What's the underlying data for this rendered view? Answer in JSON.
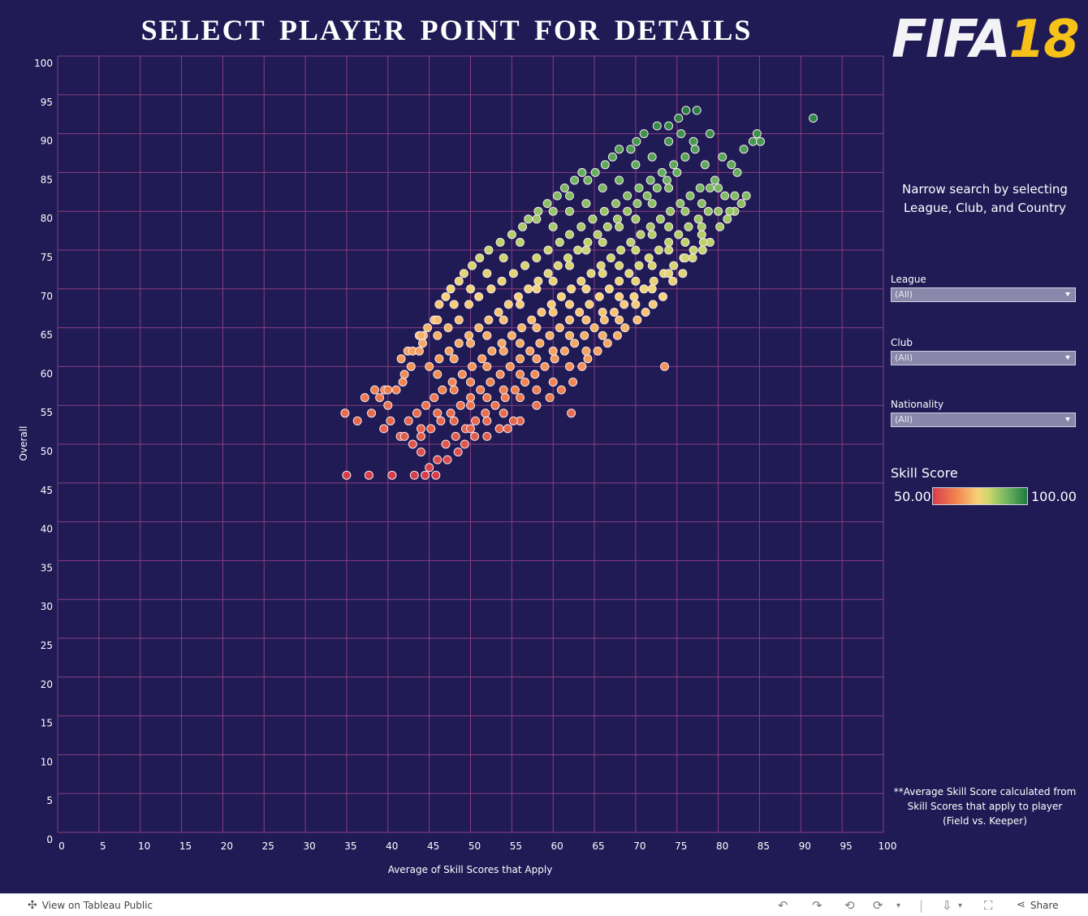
{
  "title": "SELECT PLAYER POINT FOR DETAILS",
  "logo": {
    "fifa": "FIFA",
    "num": "18"
  },
  "sidebar": {
    "narrow_text": "Narrow search by selecting League, Club, and Country",
    "filters": [
      {
        "label": "League",
        "value": "(All)"
      },
      {
        "label": "Club",
        "value": "(All)"
      },
      {
        "label": "Nationality",
        "value": "(All)"
      }
    ],
    "legend": {
      "title": "Skill Score",
      "min_label": "50.00",
      "max_label": "100.00"
    },
    "footnote": "**Average Skill Score calculated from Skill Scores that apply to player (Field vs. Keeper)"
  },
  "footer": {
    "view_label": "View on Tableau Public",
    "share_label": "Share"
  },
  "colors": {
    "background": "#201a55",
    "grid": "#8a3f82",
    "low": "#d73e4a",
    "mid": "#f9d27a",
    "high": "#1f7a3f"
  },
  "chart_data": {
    "type": "scatter",
    "xlabel": "Average of Skill Scores that Apply",
    "ylabel": "Overall",
    "xlim": [
      0,
      100
    ],
    "ylim": [
      0,
      100
    ],
    "xticks": [
      0,
      5,
      10,
      15,
      20,
      25,
      30,
      35,
      40,
      45,
      50,
      55,
      60,
      65,
      70,
      75,
      80,
      85,
      90,
      95,
      100
    ],
    "yticks": [
      0,
      5,
      10,
      15,
      20,
      25,
      30,
      35,
      40,
      45,
      50,
      55,
      60,
      65,
      70,
      75,
      80,
      85,
      90,
      95,
      100
    ],
    "grid": true,
    "color_field": "Skill Score",
    "color_range": [
      50,
      100
    ],
    "points": [
      [
        35,
        46
      ],
      [
        37.7,
        46
      ],
      [
        40.5,
        46
      ],
      [
        43.2,
        46
      ],
      [
        44.5,
        46
      ],
      [
        45.8,
        46
      ],
      [
        34.8,
        54
      ],
      [
        36.3,
        53
      ],
      [
        37.2,
        56
      ],
      [
        38.4,
        57
      ],
      [
        39.6,
        57
      ],
      [
        40.3,
        53
      ],
      [
        41.6,
        61
      ],
      [
        42.4,
        62
      ],
      [
        43.0,
        62
      ],
      [
        43.8,
        64
      ],
      [
        44.3,
        64
      ],
      [
        44.8,
        65
      ],
      [
        45.6,
        66
      ],
      [
        46.2,
        68
      ],
      [
        47.0,
        69
      ],
      [
        47.6,
        70
      ],
      [
        48.6,
        71
      ],
      [
        49.2,
        72
      ],
      [
        50.2,
        73
      ],
      [
        51.1,
        74
      ],
      [
        52.2,
        75
      ],
      [
        53.6,
        76
      ],
      [
        55.0,
        77
      ],
      [
        56.3,
        78
      ],
      [
        57.0,
        79
      ],
      [
        58.2,
        80
      ],
      [
        59.3,
        81
      ],
      [
        60.5,
        82
      ],
      [
        61.4,
        83
      ],
      [
        62.6,
        84
      ],
      [
        63.5,
        85
      ],
      [
        64.2,
        84
      ],
      [
        65.1,
        85
      ],
      [
        66.3,
        86
      ],
      [
        67.2,
        87
      ],
      [
        68.0,
        88
      ],
      [
        69.4,
        88
      ],
      [
        70.1,
        89
      ],
      [
        71.0,
        90
      ],
      [
        72.6,
        91
      ],
      [
        74.0,
        91
      ],
      [
        75.2,
        92
      ],
      [
        76.1,
        93
      ],
      [
        77.4,
        93
      ],
      [
        79.0,
        90
      ],
      [
        80.5,
        87
      ],
      [
        81.6,
        86
      ],
      [
        82.3,
        85
      ],
      [
        83.1,
        88
      ],
      [
        84.2,
        89
      ],
      [
        84.7,
        90
      ],
      [
        85.1,
        89
      ],
      [
        91.5,
        92
      ],
      [
        73.5,
        60
      ],
      [
        62.2,
        54
      ],
      [
        56.0,
        53
      ],
      [
        55.2,
        53
      ],
      [
        54.5,
        52
      ],
      [
        58.0,
        55
      ],
      [
        59.6,
        56
      ],
      [
        61.0,
        57
      ],
      [
        62.4,
        58
      ],
      [
        63.5,
        60
      ],
      [
        64.2,
        61
      ],
      [
        65.4,
        62
      ],
      [
        66.6,
        63
      ],
      [
        67.8,
        64
      ],
      [
        68.7,
        65
      ],
      [
        70.2,
        66
      ],
      [
        71.2,
        67
      ],
      [
        72.1,
        68
      ],
      [
        73.3,
        69
      ],
      [
        74.5,
        71
      ],
      [
        75.7,
        72
      ],
      [
        76.9,
        74
      ],
      [
        78.1,
        75
      ],
      [
        79.0,
        76
      ],
      [
        80.2,
        78
      ],
      [
        81.1,
        79
      ],
      [
        82.0,
        80
      ],
      [
        82.8,
        81
      ],
      [
        83.4,
        82
      ],
      [
        44.0,
        49
      ],
      [
        45.0,
        47
      ],
      [
        46.0,
        48
      ],
      [
        47.2,
        48
      ],
      [
        48.5,
        49
      ],
      [
        49.3,
        50
      ],
      [
        50.5,
        51
      ],
      [
        52.0,
        51
      ],
      [
        53.5,
        52
      ],
      [
        40.0,
        55
      ],
      [
        41.0,
        57
      ],
      [
        41.8,
        58
      ],
      [
        42.8,
        60
      ],
      [
        43.8,
        62
      ],
      [
        44.2,
        63
      ],
      [
        46.0,
        64
      ],
      [
        47.3,
        65
      ],
      [
        48.6,
        66
      ],
      [
        49.8,
        68
      ],
      [
        51.0,
        69
      ],
      [
        52.5,
        70
      ],
      [
        53.8,
        71
      ],
      [
        55.2,
        72
      ],
      [
        56.6,
        73
      ],
      [
        58.0,
        74
      ],
      [
        59.4,
        75
      ],
      [
        60.8,
        76
      ],
      [
        62.0,
        77
      ],
      [
        63.4,
        78
      ],
      [
        64.8,
        79
      ],
      [
        66.2,
        80
      ],
      [
        67.6,
        81
      ],
      [
        69.0,
        82
      ],
      [
        70.4,
        83
      ],
      [
        71.8,
        84
      ],
      [
        73.2,
        85
      ],
      [
        74.6,
        86
      ],
      [
        76.0,
        87
      ],
      [
        77.2,
        88
      ],
      [
        78.4,
        86
      ],
      [
        79.6,
        84
      ],
      [
        80.8,
        82
      ],
      [
        81.4,
        80
      ],
      [
        41.5,
        51
      ],
      [
        42.5,
        53
      ],
      [
        43.5,
        54
      ],
      [
        44.6,
        55
      ],
      [
        45.6,
        56
      ],
      [
        46.6,
        57
      ],
      [
        47.8,
        58
      ],
      [
        49.0,
        59
      ],
      [
        50.2,
        60
      ],
      [
        51.4,
        61
      ],
      [
        52.6,
        62
      ],
      [
        53.8,
        63
      ],
      [
        55.0,
        64
      ],
      [
        56.2,
        65
      ],
      [
        57.4,
        66
      ],
      [
        58.6,
        67
      ],
      [
        59.8,
        68
      ],
      [
        61.0,
        69
      ],
      [
        62.2,
        70
      ],
      [
        63.4,
        71
      ],
      [
        64.6,
        72
      ],
      [
        65.8,
        73
      ],
      [
        67.0,
        74
      ],
      [
        68.2,
        75
      ],
      [
        69.4,
        76
      ],
      [
        70.6,
        77
      ],
      [
        71.8,
        78
      ],
      [
        73.0,
        79
      ],
      [
        74.2,
        80
      ],
      [
        75.4,
        81
      ],
      [
        76.6,
        82
      ],
      [
        77.8,
        83
      ],
      [
        79.0,
        83
      ],
      [
        43.0,
        50
      ],
      [
        44.0,
        51
      ],
      [
        45.2,
        52
      ],
      [
        46.4,
        53
      ],
      [
        47.6,
        54
      ],
      [
        48.8,
        55
      ],
      [
        50.0,
        56
      ],
      [
        51.2,
        57
      ],
      [
        52.4,
        58
      ],
      [
        53.6,
        59
      ],
      [
        54.8,
        60
      ],
      [
        56.0,
        61
      ],
      [
        57.2,
        62
      ],
      [
        58.4,
        63
      ],
      [
        59.6,
        64
      ],
      [
        60.8,
        65
      ],
      [
        62.0,
        66
      ],
      [
        63.2,
        67
      ],
      [
        64.4,
        68
      ],
      [
        65.6,
        69
      ],
      [
        66.8,
        70
      ],
      [
        68.0,
        71
      ],
      [
        69.2,
        72
      ],
      [
        70.4,
        73
      ],
      [
        71.6,
        74
      ],
      [
        72.8,
        75
      ],
      [
        74.0,
        76
      ],
      [
        75.2,
        77
      ],
      [
        76.4,
        78
      ],
      [
        77.6,
        79
      ],
      [
        78.8,
        80
      ],
      [
        47.0,
        50
      ],
      [
        48.2,
        51
      ],
      [
        49.4,
        52
      ],
      [
        50.6,
        53
      ],
      [
        51.8,
        54
      ],
      [
        53.0,
        55
      ],
      [
        54.2,
        56
      ],
      [
        55.4,
        57
      ],
      [
        56.6,
        58
      ],
      [
        57.8,
        59
      ],
      [
        59.0,
        60
      ],
      [
        60.2,
        61
      ],
      [
        61.4,
        62
      ],
      [
        62.6,
        63
      ],
      [
        63.8,
        64
      ],
      [
        65.0,
        65
      ],
      [
        66.2,
        66
      ],
      [
        67.4,
        67
      ],
      [
        68.6,
        68
      ],
      [
        69.8,
        69
      ],
      [
        71.0,
        70
      ],
      [
        72.2,
        71
      ],
      [
        73.4,
        72
      ],
      [
        74.6,
        73
      ],
      [
        75.8,
        74
      ],
      [
        77.0,
        75
      ],
      [
        78.2,
        76
      ],
      [
        45.0,
        60
      ],
      [
        46.2,
        61
      ],
      [
        47.4,
        62
      ],
      [
        48.6,
        63
      ],
      [
        49.8,
        64
      ],
      [
        51.0,
        65
      ],
      [
        52.2,
        66
      ],
      [
        53.4,
        67
      ],
      [
        54.6,
        68
      ],
      [
        55.8,
        69
      ],
      [
        57.0,
        70
      ],
      [
        58.2,
        71
      ],
      [
        59.4,
        72
      ],
      [
        60.6,
        73
      ],
      [
        61.8,
        74
      ],
      [
        63.0,
        75
      ],
      [
        64.2,
        76
      ],
      [
        65.4,
        77
      ],
      [
        66.6,
        78
      ],
      [
        67.8,
        79
      ],
      [
        69.0,
        80
      ],
      [
        70.2,
        81
      ],
      [
        71.4,
        82
      ],
      [
        72.6,
        83
      ],
      [
        73.8,
        84
      ],
      [
        75.0,
        85
      ],
      [
        50.0,
        52
      ],
      [
        52.0,
        53
      ],
      [
        54.0,
        54
      ],
      [
        56.0,
        56
      ],
      [
        58.0,
        57
      ],
      [
        60.0,
        58
      ],
      [
        62.0,
        60
      ],
      [
        64.0,
        62
      ],
      [
        66.0,
        64
      ],
      [
        68.0,
        66
      ],
      [
        70.0,
        68
      ],
      [
        72.0,
        70
      ],
      [
        74.0,
        72
      ],
      [
        76.0,
        74
      ],
      [
        78.0,
        77
      ],
      [
        48.0,
        57
      ],
      [
        50.0,
        58
      ],
      [
        52.0,
        60
      ],
      [
        54.0,
        62
      ],
      [
        56.0,
        63
      ],
      [
        58.0,
        65
      ],
      [
        60.0,
        67
      ],
      [
        62.0,
        68
      ],
      [
        64.0,
        70
      ],
      [
        66.0,
        72
      ],
      [
        68.0,
        73
      ],
      [
        70.0,
        75
      ],
      [
        72.0,
        77
      ],
      [
        74.0,
        78
      ],
      [
        76.0,
        80
      ],
      [
        78.0,
        81
      ],
      [
        80.0,
        83
      ],
      [
        46.0,
        59
      ],
      [
        48.0,
        61
      ],
      [
        50.0,
        63
      ],
      [
        52.0,
        64
      ],
      [
        54.0,
        66
      ],
      [
        56.0,
        68
      ],
      [
        58.0,
        70
      ],
      [
        60.0,
        71
      ],
      [
        62.0,
        73
      ],
      [
        64.0,
        75
      ],
      [
        66.0,
        76
      ],
      [
        68.0,
        78
      ],
      [
        70.0,
        79
      ],
      [
        72.0,
        81
      ],
      [
        74.0,
        83
      ],
      [
        60.0,
        78
      ],
      [
        62.0,
        80
      ],
      [
        64.0,
        81
      ],
      [
        66.0,
        83
      ],
      [
        68.0,
        84
      ],
      [
        70.0,
        86
      ],
      [
        72.0,
        87
      ],
      [
        74.0,
        89
      ],
      [
        75.5,
        90
      ],
      [
        77.0,
        89
      ],
      [
        58.0,
        79
      ],
      [
        60.0,
        80
      ],
      [
        62.0,
        82
      ],
      [
        56.0,
        76
      ],
      [
        54.0,
        74
      ],
      [
        52.0,
        72
      ],
      [
        50.0,
        70
      ],
      [
        48.0,
        68
      ],
      [
        46.0,
        66
      ],
      [
        44.0,
        64
      ],
      [
        42.0,
        59
      ],
      [
        40.0,
        57
      ],
      [
        39.0,
        56
      ],
      [
        38.0,
        54
      ],
      [
        39.5,
        52
      ],
      [
        42.0,
        51
      ],
      [
        44.0,
        52
      ],
      [
        46.0,
        54
      ],
      [
        48.0,
        53
      ],
      [
        50.0,
        55
      ],
      [
        52.0,
        56
      ],
      [
        54.0,
        57
      ],
      [
        56.0,
        59
      ],
      [
        58.0,
        61
      ],
      [
        60.0,
        62
      ],
      [
        62.0,
        64
      ],
      [
        64.0,
        66
      ],
      [
        66.0,
        67
      ],
      [
        68.0,
        69
      ],
      [
        70.0,
        71
      ],
      [
        72.0,
        73
      ],
      [
        74.0,
        75
      ],
      [
        76.0,
        76
      ],
      [
        78.0,
        78
      ],
      [
        80.0,
        80
      ],
      [
        82.0,
        82
      ]
    ]
  }
}
